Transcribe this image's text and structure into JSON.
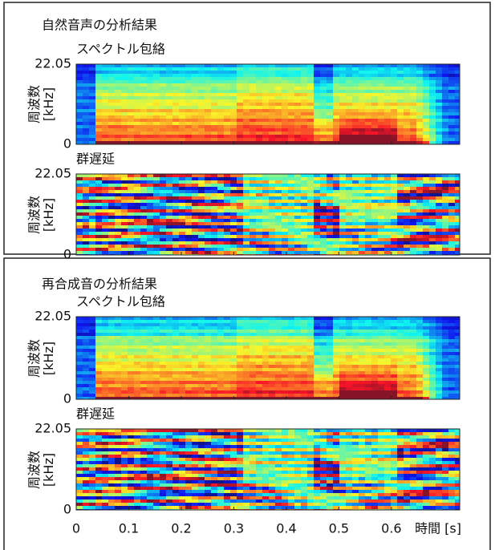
{
  "figure": {
    "groups": [
      {
        "title": "自然音声の分析結果"
      },
      {
        "title": "再合成音の分析結果"
      }
    ]
  },
  "chart_data": [
    {
      "type": "spectrogram",
      "kind": "envelope",
      "title": "スペクトル包絡",
      "ylabel": "周波数 [kHz]",
      "ylim": [
        0,
        22.05
      ],
      "yticks": [
        0,
        22.05
      ],
      "xlim": [
        0,
        0.73
      ]
    },
    {
      "type": "spectrogram",
      "kind": "group-delay",
      "title": "群遅延",
      "ylabel": "周波数 [kHz]",
      "ylim": [
        0,
        22.05
      ],
      "yticks": [
        0,
        22.05
      ],
      "xlim": [
        0,
        0.73
      ]
    },
    {
      "type": "spectrogram",
      "kind": "envelope",
      "title": "スペクトル包絡",
      "ylabel": "周波数 [kHz]",
      "ylim": [
        0,
        22.05
      ],
      "yticks": [
        0,
        22.05
      ],
      "xlim": [
        0,
        0.73
      ]
    },
    {
      "type": "spectrogram",
      "kind": "group-delay",
      "title": "群遅延",
      "ylabel": "周波数 [kHz]",
      "ylim": [
        0,
        22.05
      ],
      "yticks": [
        0,
        22.05
      ],
      "xlim": [
        0,
        0.73
      ],
      "xlabel": "時間 [s]",
      "xticks": [
        0,
        0.1,
        0.2,
        0.3,
        0.4,
        0.5,
        0.6
      ]
    }
  ]
}
